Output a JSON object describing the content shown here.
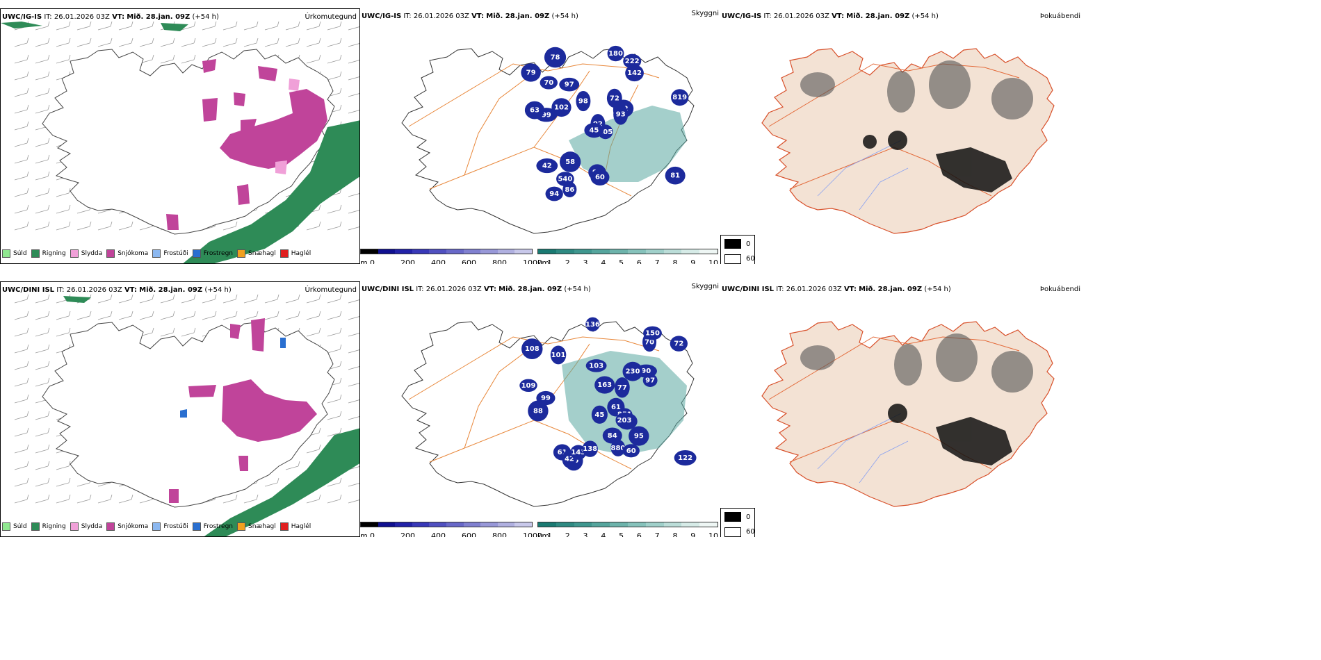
{
  "rows": [
    {
      "model": "UWC/IG-IS",
      "it_label": "IT:",
      "it_value": "26.01.2026 03Z",
      "vt_label": "VT:",
      "vt_value": "Mið. 28.jan. 09Z",
      "lead": "(+54 h)"
    },
    {
      "model": "UWC/DINI ISL",
      "it_label": "IT:",
      "it_value": "26.01.2026 03Z",
      "vt_label": "VT:",
      "vt_value": "Mið. 28.jan. 09Z",
      "lead": "(+54 h)"
    }
  ],
  "panels": {
    "precip_type": "Úrkomutegund",
    "visibility": "Skyggni",
    "fog": "Þokuábendi"
  },
  "precip_legend": [
    {
      "label": "Súld",
      "color": "#90e890"
    },
    {
      "label": "Rigning",
      "color": "#2e8b57"
    },
    {
      "label": "Slydda",
      "color": "#f0a0d8"
    },
    {
      "label": "Snjókoma",
      "color": "#c0449a"
    },
    {
      "label": "Frostúði",
      "color": "#8cb8f0"
    },
    {
      "label": "Frostregn",
      "color": "#2a6fd0"
    },
    {
      "label": "Snæhagl",
      "color": "#f0a020"
    },
    {
      "label": "Haglél",
      "color": "#e02020"
    }
  ],
  "cloud_base_bar": {
    "unit": "m",
    "ticks": [
      "0",
      "200",
      "400",
      "600",
      "800",
      "1000"
    ],
    "colors": [
      "#000000",
      "#101090",
      "#2222a8",
      "#3838b8",
      "#5050c0",
      "#6868c8",
      "#8080d0",
      "#9898d8",
      "#b0b0e0",
      "#c8c8ea"
    ]
  },
  "visibility_bar": {
    "unit": "km",
    "ticks": [
      "1",
      "2",
      "3",
      "4",
      "5",
      "6",
      "7",
      "8",
      "9",
      "10"
    ],
    "colors": [
      "#1a7a72",
      "#2e8a82",
      "#3f978f",
      "#55a59d",
      "#6db3ab",
      "#86c2bb",
      "#a0d0ca",
      "#bbddd8",
      "#d6ebe7",
      "#eef6f4"
    ]
  },
  "fog_legend": {
    "high": "0",
    "low": "60"
  },
  "cloud_labels_row1": [
    "105",
    "92",
    "99",
    "222",
    "142",
    "78",
    "99",
    "45",
    "94",
    "72",
    "98",
    "540",
    "72",
    "70",
    "63",
    "819",
    "91",
    "97",
    "58",
    "81",
    "180",
    "102",
    "86",
    "93",
    "60",
    "42",
    "79"
  ],
  "cloud_labels_row2": [
    "109",
    "90",
    "108",
    "99",
    "103",
    "163",
    "136",
    "101",
    "880",
    "61",
    "95",
    "72",
    "61",
    "851",
    "80",
    "88",
    "77",
    "42",
    "97",
    "143",
    "84",
    "122",
    "45",
    "70",
    "138",
    "230",
    "98",
    "60",
    "203",
    "150"
  ]
}
